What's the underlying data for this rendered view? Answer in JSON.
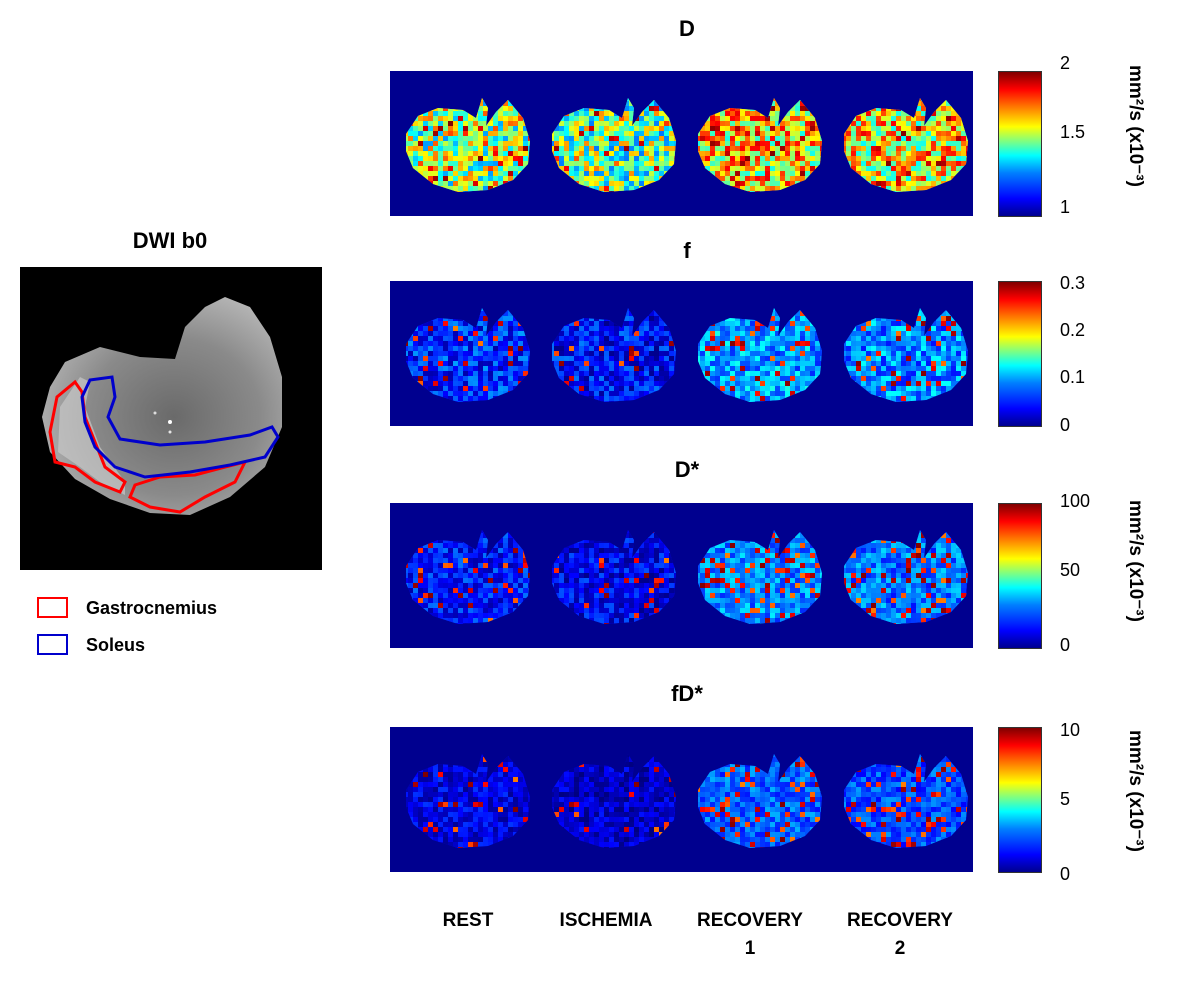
{
  "left_panel": {
    "title": "DWI b0",
    "legend": [
      {
        "label": "Gastrocnemius",
        "color": "#ff0000"
      },
      {
        "label": "Soleus",
        "color": "#0000cc"
      }
    ]
  },
  "rows": [
    {
      "title": "D",
      "ticks": [
        "2",
        "1.5",
        "1"
      ],
      "unit": "mm²/s (x10⁻³)"
    },
    {
      "title": "f",
      "ticks": [
        "0.3",
        "0.2",
        "0.1",
        "0"
      ],
      "unit": ""
    },
    {
      "title": "D*",
      "ticks": [
        "100",
        "50",
        "0"
      ],
      "unit": "mm²/s (x10⁻³)"
    },
    {
      "title": "fD*",
      "ticks": [
        "10",
        "5",
        "0"
      ],
      "unit": "mm²/s (x10⁻³)"
    }
  ],
  "columns": [
    {
      "line1": "REST",
      "line2": ""
    },
    {
      "line1": "ISCHEMIA",
      "line2": ""
    },
    {
      "line1": "RECOVERY",
      "line2": "1"
    },
    {
      "line1": "RECOVERY",
      "line2": "2"
    }
  ],
  "colormap": "jet"
}
